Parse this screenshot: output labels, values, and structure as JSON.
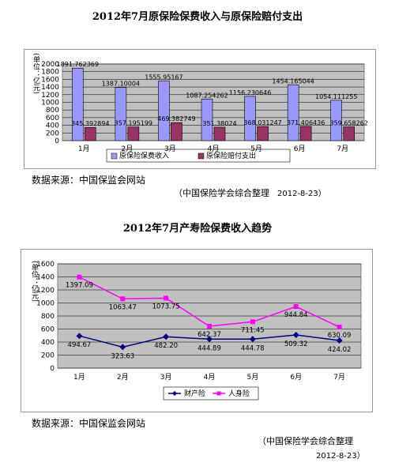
{
  "chart_data": [
    {
      "type": "bar",
      "title": "2012年7月原保险保费收入与原保险赔付支出",
      "ylabel": "(单位：亿元)",
      "ylim": [
        0,
        2000
      ],
      "yticks": [
        "0",
        "200",
        "400",
        "600",
        "800",
        "1000",
        "1200",
        "1400",
        "1600",
        "1800",
        "2000"
      ],
      "categories": [
        "1月",
        "2月",
        "3月",
        "4月",
        "5月",
        "6月",
        "7月"
      ],
      "series": [
        {
          "name": "原保险保费收入",
          "color": "#9999ff",
          "values": [
            1891.762369,
            1387.10004,
            1555.95167,
            1087.254262,
            1156.230646,
            1454.165044,
            1054.111255
          ],
          "labels": [
            "1891.762369",
            "1387.10004",
            "1555.95167",
            "1087.254262",
            "1156.230646",
            "1454.165044",
            "1054.111255"
          ]
        },
        {
          "name": "原保险赔付支出",
          "color": "#993366",
          "values": [
            345.392894,
            357.195199,
            469.382749,
            351.38024,
            368.031247,
            371.406436,
            359.658262
          ],
          "labels": [
            "345.392894",
            "357.195199",
            "469.382749",
            "351.38024",
            "368.031247",
            "371.406436",
            "359.658262"
          ]
        }
      ],
      "grid": true,
      "legend": "bottom"
    },
    {
      "type": "line",
      "title": "2012年7月产寿险保费收入趋势",
      "ylabel": "(单位：亿元)",
      "ylim": [
        0,
        1600
      ],
      "yticks": [
        "0",
        "200",
        "400",
        "600",
        "800",
        "1000",
        "1200",
        "1400",
        "1600"
      ],
      "categories": [
        "1月",
        "2月",
        "3月",
        "4月",
        "5月",
        "6月",
        "7月"
      ],
      "series": [
        {
          "name": "财产险",
          "color": "#000080",
          "marker": "diamond",
          "values": [
            494.67,
            323.63,
            482.2,
            444.89,
            444.78,
            509.32,
            424.02
          ],
          "labels": [
            "494.67",
            "323.63",
            "482.20",
            "444.89",
            "444.78",
            "509.32",
            "424.02"
          ]
        },
        {
          "name": "人身险",
          "color": "#ff00ff",
          "marker": "square",
          "values": [
            1397.09,
            1063.47,
            1073.75,
            642.37,
            711.45,
            944.84,
            630.09
          ],
          "labels": [
            "1397.09",
            "1063.47",
            "1073.75",
            "642.37",
            "711.45",
            "944.84",
            "630.09"
          ]
        }
      ],
      "grid": true,
      "legend": "bottom"
    }
  ],
  "notes": {
    "source1": "数据来源：中国保监会网站",
    "credit1": "（中国保险学会综合整理",
    "date1": "2012-8-23）",
    "source2": "数据来源：中国保监会网站",
    "credit2": "（中国保险学会综合整理",
    "date2": "2012-8-23）"
  }
}
